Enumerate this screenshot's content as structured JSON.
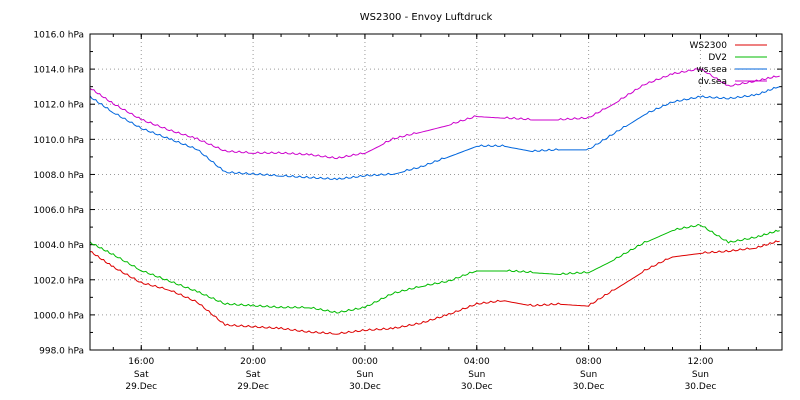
{
  "chart_data": {
    "type": "line",
    "title": "WS2300 - Envoy Luftdruck",
    "xlabel": "",
    "ylabel": "",
    "ylim": [
      998.0,
      1016.0
    ],
    "y_unit": "hPa",
    "y_ticks": [
      "998.0 hPa",
      "1000.0 hPa",
      "1002.0 hPa",
      "1004.0 hPa",
      "1006.0 hPa",
      "1008.0 hPa",
      "1010.0 hPa",
      "1012.0 hPa",
      "1014.0 hPa",
      "1016.0 hPa"
    ],
    "xlim": [
      "29.Dec 14:10",
      "30.Dec 14:55"
    ],
    "x_ticks": [
      {
        "time": "16:00",
        "day": "Sat",
        "date": "29.Dec"
      },
      {
        "time": "20:00",
        "day": "Sat",
        "date": "29.Dec"
      },
      {
        "time": "00:00",
        "day": "Sun",
        "date": "30.Dec"
      },
      {
        "time": "04:00",
        "day": "Sun",
        "date": "30.Dec"
      },
      {
        "time": "08:00",
        "day": "Sun",
        "date": "30.Dec"
      },
      {
        "time": "12:00",
        "day": "Sun",
        "date": "30.Dec"
      }
    ],
    "grid": true,
    "legend_position": "top-right",
    "x": [
      "29.Dec 14:10",
      "29.Dec 15:00",
      "29.Dec 16:00",
      "29.Dec 17:00",
      "29.Dec 18:00",
      "29.Dec 19:00",
      "29.Dec 20:00",
      "29.Dec 21:00",
      "29.Dec 22:00",
      "29.Dec 23:00",
      "30.Dec 00:00",
      "30.Dec 01:00",
      "30.Dec 02:00",
      "30.Dec 03:00",
      "30.Dec 04:00",
      "30.Dec 05:00",
      "30.Dec 06:00",
      "30.Dec 07:00",
      "30.Dec 08:00",
      "30.Dec 09:00",
      "30.Dec 10:00",
      "30.Dec 11:00",
      "30.Dec 12:00",
      "30.Dec 13:00",
      "30.Dec 14:00",
      "30.Dec 14:50"
    ],
    "series": [
      {
        "name": "WS2300",
        "color": "#dd0000",
        "values": [
          1003.6,
          1002.7,
          1001.8,
          1001.4,
          1000.7,
          999.4,
          999.3,
          999.2,
          999.0,
          998.9,
          999.1,
          999.2,
          999.5,
          1000.0,
          1000.6,
          1000.8,
          1000.5,
          1000.6,
          1000.5,
          1001.5,
          1002.5,
          1003.3,
          1003.5,
          1003.6,
          1003.8,
          1004.2
        ]
      },
      {
        "name": "DV2",
        "color": "#00bb00",
        "values": [
          1004.1,
          1003.4,
          1002.5,
          1001.9,
          1001.3,
          1000.6,
          1000.5,
          1000.4,
          1000.4,
          1000.1,
          1000.4,
          1001.2,
          1001.6,
          1001.9,
          1002.5,
          1002.5,
          1002.4,
          1002.3,
          1002.4,
          1003.2,
          1004.1,
          1004.8,
          1005.1,
          1004.1,
          1004.4,
          1004.8
        ]
      },
      {
        "name": "ws.sea",
        "color": "#0066dd",
        "values": [
          1012.4,
          1011.5,
          1010.6,
          1010.0,
          1009.4,
          1008.1,
          1008.0,
          1007.9,
          1007.8,
          1007.7,
          1007.9,
          1008.0,
          1008.4,
          1009.0,
          1009.6,
          1009.6,
          1009.3,
          1009.4,
          1009.4,
          1010.4,
          1011.4,
          1012.1,
          1012.4,
          1012.3,
          1012.5,
          1013.0
        ]
      },
      {
        "name": "dv.sea",
        "color": "#cc00cc",
        "values": [
          1012.9,
          1012.0,
          1011.1,
          1010.5,
          1010.0,
          1009.3,
          1009.2,
          1009.2,
          1009.1,
          1008.9,
          1009.2,
          1010.0,
          1010.4,
          1010.8,
          1011.3,
          1011.2,
          1011.1,
          1011.1,
          1011.2,
          1012.1,
          1013.1,
          1013.7,
          1014.0,
          1013.0,
          1013.3,
          1013.6
        ]
      }
    ]
  }
}
